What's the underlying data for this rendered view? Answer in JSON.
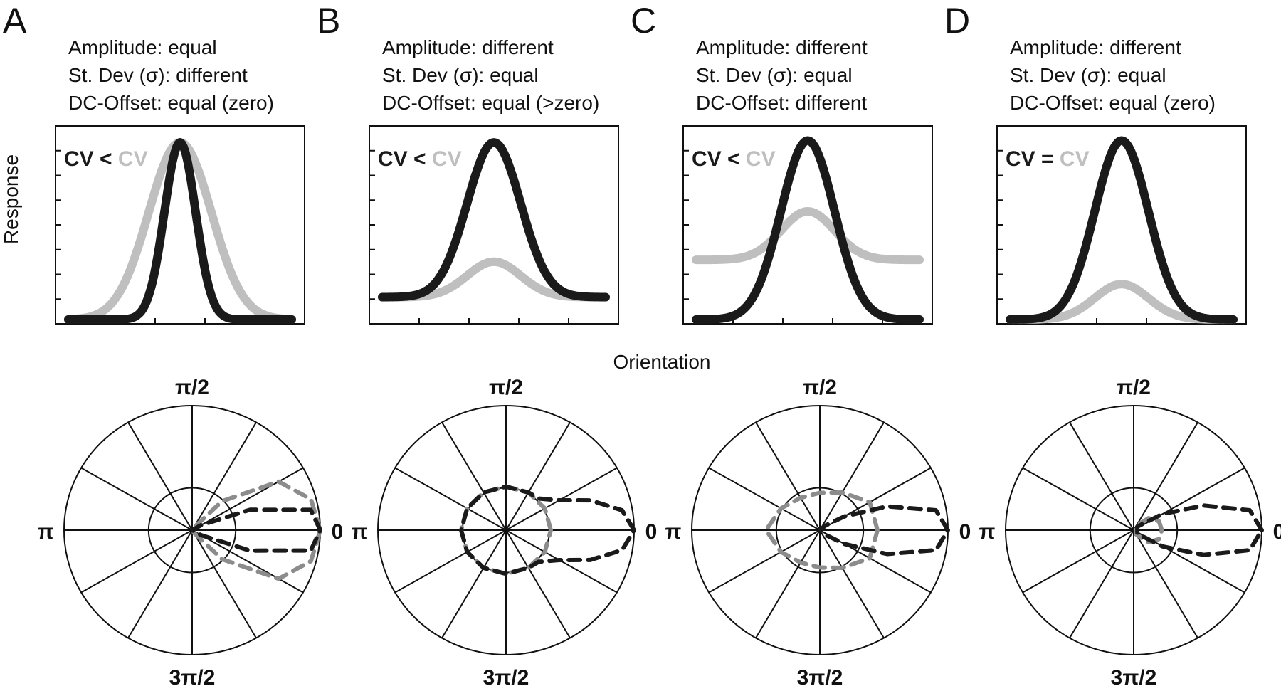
{
  "figure": {
    "ylabel": "Response",
    "xlabel": "Orientation",
    "polar_labels": {
      "right": "0",
      "top": "π/2",
      "left": "π",
      "bottom": "3π/2"
    }
  },
  "colors": {
    "dark": "#1a1a1a",
    "light": "#bfbfbf",
    "polar_dark": "#1a1a1a",
    "polar_light": "#8c8c8c"
  },
  "panels": [
    {
      "letter": "A",
      "desc": [
        "Amplitude: equal",
        "St. Dev (σ): different",
        "DC-Offset: equal (zero)"
      ],
      "cv": {
        "left": "CV",
        "op": "<",
        "right": "CV"
      }
    },
    {
      "letter": "B",
      "desc": [
        "Amplitude: different",
        "St. Dev (σ): equal",
        "DC-Offset: equal (>zero)"
      ],
      "cv": {
        "left": "CV",
        "op": "<",
        "right": "CV"
      }
    },
    {
      "letter": "C",
      "desc": [
        "Amplitude: different",
        "St. Dev (σ): equal",
        "DC-Offset: different"
      ],
      "cv": {
        "left": "CV",
        "op": "<",
        "right": "CV"
      }
    },
    {
      "letter": "D",
      "desc": [
        "Amplitude: different",
        "St. Dev (σ): equal",
        "DC-Offset: equal (zero)"
      ],
      "cv": {
        "left": "CV",
        "op": "=",
        "right": "CV"
      }
    }
  ],
  "chart_data": [
    {
      "type": "line",
      "panel": "A",
      "xlim": [
        0,
        1
      ],
      "ylim": [
        0,
        1
      ],
      "series": [
        {
          "color": "light",
          "amplitude": 0.95,
          "sigma": 0.14,
          "offset": 0.0
        },
        {
          "color": "dark",
          "amplitude": 0.95,
          "sigma": 0.07,
          "offset": 0.0
        }
      ]
    },
    {
      "type": "line",
      "panel": "B",
      "xlim": [
        0,
        1
      ],
      "ylim": [
        0,
        1
      ],
      "series": [
        {
          "color": "light",
          "amplitude": 0.19,
          "sigma": 0.12,
          "offset": 0.12
        },
        {
          "color": "dark",
          "amplitude": 0.83,
          "sigma": 0.12,
          "offset": 0.12
        }
      ]
    },
    {
      "type": "line",
      "panel": "C",
      "xlim": [
        0,
        1
      ],
      "ylim": [
        0,
        1
      ],
      "series": [
        {
          "color": "light",
          "amplitude": 0.26,
          "sigma": 0.12,
          "offset": 0.32
        },
        {
          "color": "dark",
          "amplitude": 0.96,
          "sigma": 0.12,
          "offset": 0.0
        }
      ]
    },
    {
      "type": "line",
      "panel": "D",
      "xlim": [
        0,
        1
      ],
      "ylim": [
        0,
        1
      ],
      "series": [
        {
          "color": "light",
          "amplitude": 0.19,
          "sigma": 0.12,
          "offset": 0.0
        },
        {
          "color": "dark",
          "amplitude": 0.96,
          "sigma": 0.12,
          "offset": 0.0
        }
      ]
    },
    {
      "type": "polar",
      "panel": "A",
      "rlim": [
        0,
        1
      ],
      "reference_circle_r": 0.34,
      "series": [
        {
          "color": "polar_light",
          "points": [
            [
              0,
              1.0
            ],
            [
              15,
              0.96
            ],
            [
              30,
              0.78
            ],
            [
              45,
              0.33
            ],
            [
              60,
              0.02
            ],
            [
              300,
              0.02
            ],
            [
              315,
              0.33
            ],
            [
              330,
              0.78
            ],
            [
              345,
              0.96
            ],
            [
              360,
              1.0
            ]
          ]
        },
        {
          "color": "polar_dark",
          "points": [
            [
              0,
              1.0
            ],
            [
              10,
              0.94
            ],
            [
              20,
              0.48
            ],
            [
              30,
              0.08
            ],
            [
              40,
              0.0
            ],
            [
              320,
              0.0
            ],
            [
              330,
              0.08
            ],
            [
              340,
              0.48
            ],
            [
              350,
              0.94
            ],
            [
              360,
              1.0
            ]
          ]
        }
      ]
    },
    {
      "type": "polar",
      "panel": "B",
      "rlim": [
        0,
        1
      ],
      "reference_circle_r": 0.34,
      "series": [
        {
          "color": "polar_light",
          "points": [
            [
              0,
              0.35
            ],
            [
              30,
              0.35
            ],
            [
              60,
              0.35
            ],
            [
              90,
              0.35
            ],
            [
              120,
              0.35
            ],
            [
              150,
              0.35
            ],
            [
              180,
              0.35
            ],
            [
              210,
              0.35
            ],
            [
              240,
              0.35
            ],
            [
              270,
              0.35
            ],
            [
              300,
              0.35
            ],
            [
              330,
              0.35
            ],
            [
              360,
              0.35
            ]
          ]
        },
        {
          "color": "polar_dark",
          "points": [
            [
              0,
              1.0
            ],
            [
              10,
              0.92
            ],
            [
              20,
              0.7
            ],
            [
              30,
              0.48
            ],
            [
              45,
              0.36
            ],
            [
              60,
              0.35
            ],
            [
              90,
              0.35
            ],
            [
              120,
              0.35
            ],
            [
              150,
              0.35
            ],
            [
              180,
              0.35
            ],
            [
              210,
              0.35
            ],
            [
              240,
              0.35
            ],
            [
              270,
              0.35
            ],
            [
              300,
              0.35
            ],
            [
              315,
              0.36
            ],
            [
              330,
              0.48
            ],
            [
              340,
              0.7
            ],
            [
              350,
              0.92
            ],
            [
              360,
              1.0
            ]
          ]
        }
      ]
    },
    {
      "type": "polar",
      "panel": "C",
      "rlim": [
        0,
        1
      ],
      "reference_circle_r": 0.34,
      "series": [
        {
          "color": "polar_light",
          "points": [
            [
              0,
              0.45
            ],
            [
              30,
              0.45
            ],
            [
              60,
              0.35
            ],
            [
              90,
              0.3
            ],
            [
              120,
              0.3
            ],
            [
              150,
              0.35
            ],
            [
              180,
              0.42
            ],
            [
              210,
              0.35
            ],
            [
              240,
              0.3
            ],
            [
              270,
              0.3
            ],
            [
              300,
              0.35
            ],
            [
              330,
              0.45
            ],
            [
              360,
              0.45
            ]
          ]
        },
        {
          "color": "polar_dark",
          "points": [
            [
              0,
              1.0
            ],
            [
              10,
              0.92
            ],
            [
              20,
              0.56
            ],
            [
              30,
              0.22
            ],
            [
              40,
              0.06
            ],
            [
              60,
              0.0
            ],
            [
              300,
              0.0
            ],
            [
              320,
              0.06
            ],
            [
              330,
              0.22
            ],
            [
              340,
              0.56
            ],
            [
              350,
              0.92
            ],
            [
              360,
              1.0
            ]
          ]
        }
      ]
    },
    {
      "type": "polar",
      "panel": "D",
      "rlim": [
        0,
        1
      ],
      "reference_circle_r": 0.34,
      "series": [
        {
          "color": "polar_light",
          "points": [
            [
              0,
              0.22
            ],
            [
              20,
              0.21
            ],
            [
              40,
              0.15
            ],
            [
              60,
              0.04
            ],
            [
              300,
              0.04
            ],
            [
              320,
              0.15
            ],
            [
              340,
              0.21
            ],
            [
              360,
              0.22
            ]
          ]
        },
        {
          "color": "polar_dark",
          "points": [
            [
              0,
              1.0
            ],
            [
              10,
              0.92
            ],
            [
              20,
              0.58
            ],
            [
              30,
              0.26
            ],
            [
              45,
              0.04
            ],
            [
              315,
              0.04
            ],
            [
              330,
              0.26
            ],
            [
              340,
              0.58
            ],
            [
              350,
              0.92
            ],
            [
              360,
              1.0
            ]
          ]
        }
      ]
    }
  ]
}
